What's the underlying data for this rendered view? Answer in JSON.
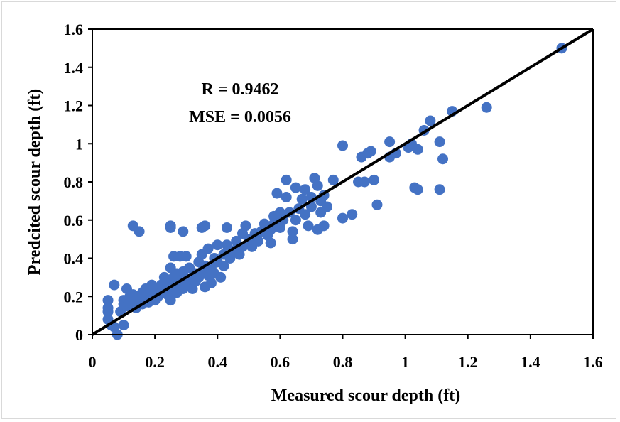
{
  "chart_data": {
    "type": "scatter",
    "title": "",
    "xlabel": "Measured scour depth (ft)",
    "ylabel": "Predcited scour depth (ft)",
    "xlim": [
      0,
      1.6
    ],
    "ylim": [
      0,
      1.6
    ],
    "x_ticks": [
      "0",
      "0.2",
      "0.4",
      "0.6",
      "0.8",
      "1",
      "1.2",
      "1.4",
      "1.6"
    ],
    "y_ticks": [
      "0",
      "0.2",
      "0.4",
      "0.6",
      "0.8",
      "1",
      "1.2",
      "1.4",
      "1.6"
    ],
    "grid": false,
    "legend": "none",
    "annotations": [
      "R = 0.9462",
      "MSE = 0.0056"
    ],
    "reference_line": {
      "from": [
        0,
        0
      ],
      "to": [
        1.6,
        1.6
      ],
      "color": "#000000"
    },
    "marker_color": "#4472C4",
    "points": [
      [
        0.05,
        0.18
      ],
      [
        0.05,
        0.14
      ],
      [
        0.05,
        0.12
      ],
      [
        0.05,
        0.08
      ],
      [
        0.06,
        0.05
      ],
      [
        0.07,
        0.04
      ],
      [
        0.07,
        0.26
      ],
      [
        0.08,
        0.0
      ],
      [
        0.09,
        0.12
      ],
      [
        0.1,
        0.05
      ],
      [
        0.1,
        0.16
      ],
      [
        0.1,
        0.18
      ],
      [
        0.11,
        0.24
      ],
      [
        0.11,
        0.15
      ],
      [
        0.12,
        0.17
      ],
      [
        0.12,
        0.2
      ],
      [
        0.13,
        0.57
      ],
      [
        0.13,
        0.21
      ],
      [
        0.14,
        0.14
      ],
      [
        0.14,
        0.18
      ],
      [
        0.15,
        0.54
      ],
      [
        0.15,
        0.2
      ],
      [
        0.16,
        0.16
      ],
      [
        0.16,
        0.22
      ],
      [
        0.17,
        0.19
      ],
      [
        0.17,
        0.24
      ],
      [
        0.18,
        0.21
      ],
      [
        0.18,
        0.17
      ],
      [
        0.19,
        0.26
      ],
      [
        0.19,
        0.2
      ],
      [
        0.2,
        0.22
      ],
      [
        0.2,
        0.18
      ],
      [
        0.21,
        0.24
      ],
      [
        0.21,
        0.2
      ],
      [
        0.22,
        0.26
      ],
      [
        0.22,
        0.22
      ],
      [
        0.23,
        0.3
      ],
      [
        0.23,
        0.24
      ],
      [
        0.24,
        0.21
      ],
      [
        0.24,
        0.27
      ],
      [
        0.25,
        0.56
      ],
      [
        0.25,
        0.57
      ],
      [
        0.25,
        0.35
      ],
      [
        0.25,
        0.23
      ],
      [
        0.25,
        0.18
      ],
      [
        0.26,
        0.41
      ],
      [
        0.26,
        0.3
      ],
      [
        0.26,
        0.25
      ],
      [
        0.27,
        0.32
      ],
      [
        0.27,
        0.22
      ],
      [
        0.28,
        0.41
      ],
      [
        0.28,
        0.28
      ],
      [
        0.29,
        0.54
      ],
      [
        0.29,
        0.33
      ],
      [
        0.29,
        0.24
      ],
      [
        0.3,
        0.41
      ],
      [
        0.3,
        0.29
      ],
      [
        0.31,
        0.26
      ],
      [
        0.31,
        0.35
      ],
      [
        0.32,
        0.3
      ],
      [
        0.32,
        0.24
      ],
      [
        0.33,
        0.32
      ],
      [
        0.33,
        0.28
      ],
      [
        0.34,
        0.38
      ],
      [
        0.34,
        0.3
      ],
      [
        0.35,
        0.56
      ],
      [
        0.35,
        0.33
      ],
      [
        0.35,
        0.42
      ],
      [
        0.36,
        0.57
      ],
      [
        0.36,
        0.25
      ],
      [
        0.36,
        0.36
      ],
      [
        0.37,
        0.45
      ],
      [
        0.37,
        0.31
      ],
      [
        0.38,
        0.35
      ],
      [
        0.38,
        0.27
      ],
      [
        0.39,
        0.4
      ],
      [
        0.39,
        0.32
      ],
      [
        0.4,
        0.47
      ],
      [
        0.4,
        0.38
      ],
      [
        0.41,
        0.3
      ],
      [
        0.42,
        0.36
      ],
      [
        0.42,
        0.42
      ],
      [
        0.43,
        0.56
      ],
      [
        0.43,
        0.47
      ],
      [
        0.44,
        0.4
      ],
      [
        0.45,
        0.44
      ],
      [
        0.46,
        0.49
      ],
      [
        0.47,
        0.42
      ],
      [
        0.48,
        0.53
      ],
      [
        0.48,
        0.46
      ],
      [
        0.49,
        0.57
      ],
      [
        0.5,
        0.5
      ],
      [
        0.51,
        0.46
      ],
      [
        0.52,
        0.53
      ],
      [
        0.53,
        0.49
      ],
      [
        0.54,
        0.54
      ],
      [
        0.55,
        0.58
      ],
      [
        0.56,
        0.52
      ],
      [
        0.57,
        0.55
      ],
      [
        0.57,
        0.48
      ],
      [
        0.58,
        0.62
      ],
      [
        0.58,
        0.58
      ],
      [
        0.59,
        0.74
      ],
      [
        0.6,
        0.64
      ],
      [
        0.6,
        0.56
      ],
      [
        0.61,
        0.6
      ],
      [
        0.62,
        0.81
      ],
      [
        0.62,
        0.72
      ],
      [
        0.63,
        0.64
      ],
      [
        0.64,
        0.54
      ],
      [
        0.64,
        0.5
      ],
      [
        0.65,
        0.77
      ],
      [
        0.65,
        0.6
      ],
      [
        0.66,
        0.66
      ],
      [
        0.67,
        0.71
      ],
      [
        0.68,
        0.76
      ],
      [
        0.68,
        0.63
      ],
      [
        0.69,
        0.57
      ],
      [
        0.7,
        0.72
      ],
      [
        0.7,
        0.67
      ],
      [
        0.71,
        0.82
      ],
      [
        0.72,
        0.78
      ],
      [
        0.72,
        0.55
      ],
      [
        0.73,
        0.64
      ],
      [
        0.73,
        0.7
      ],
      [
        0.74,
        0.57
      ],
      [
        0.74,
        0.73
      ],
      [
        0.75,
        0.67
      ],
      [
        0.77,
        0.81
      ],
      [
        0.8,
        0.99
      ],
      [
        0.8,
        0.61
      ],
      [
        0.83,
        0.63
      ],
      [
        0.85,
        0.8
      ],
      [
        0.86,
        0.93
      ],
      [
        0.87,
        0.8
      ],
      [
        0.88,
        0.95
      ],
      [
        0.89,
        0.96
      ],
      [
        0.9,
        0.81
      ],
      [
        0.91,
        0.68
      ],
      [
        0.95,
        1.01
      ],
      [
        0.95,
        0.93
      ],
      [
        0.97,
        0.95
      ],
      [
        1.01,
        0.98
      ],
      [
        1.02,
        1.0
      ],
      [
        1.03,
        0.77
      ],
      [
        1.04,
        0.97
      ],
      [
        1.04,
        0.76
      ],
      [
        1.06,
        1.07
      ],
      [
        1.08,
        1.12
      ],
      [
        1.11,
        1.01
      ],
      [
        1.11,
        0.76
      ],
      [
        1.12,
        0.92
      ],
      [
        1.15,
        1.17
      ],
      [
        1.26,
        1.19
      ],
      [
        1.5,
        1.5
      ]
    ]
  }
}
